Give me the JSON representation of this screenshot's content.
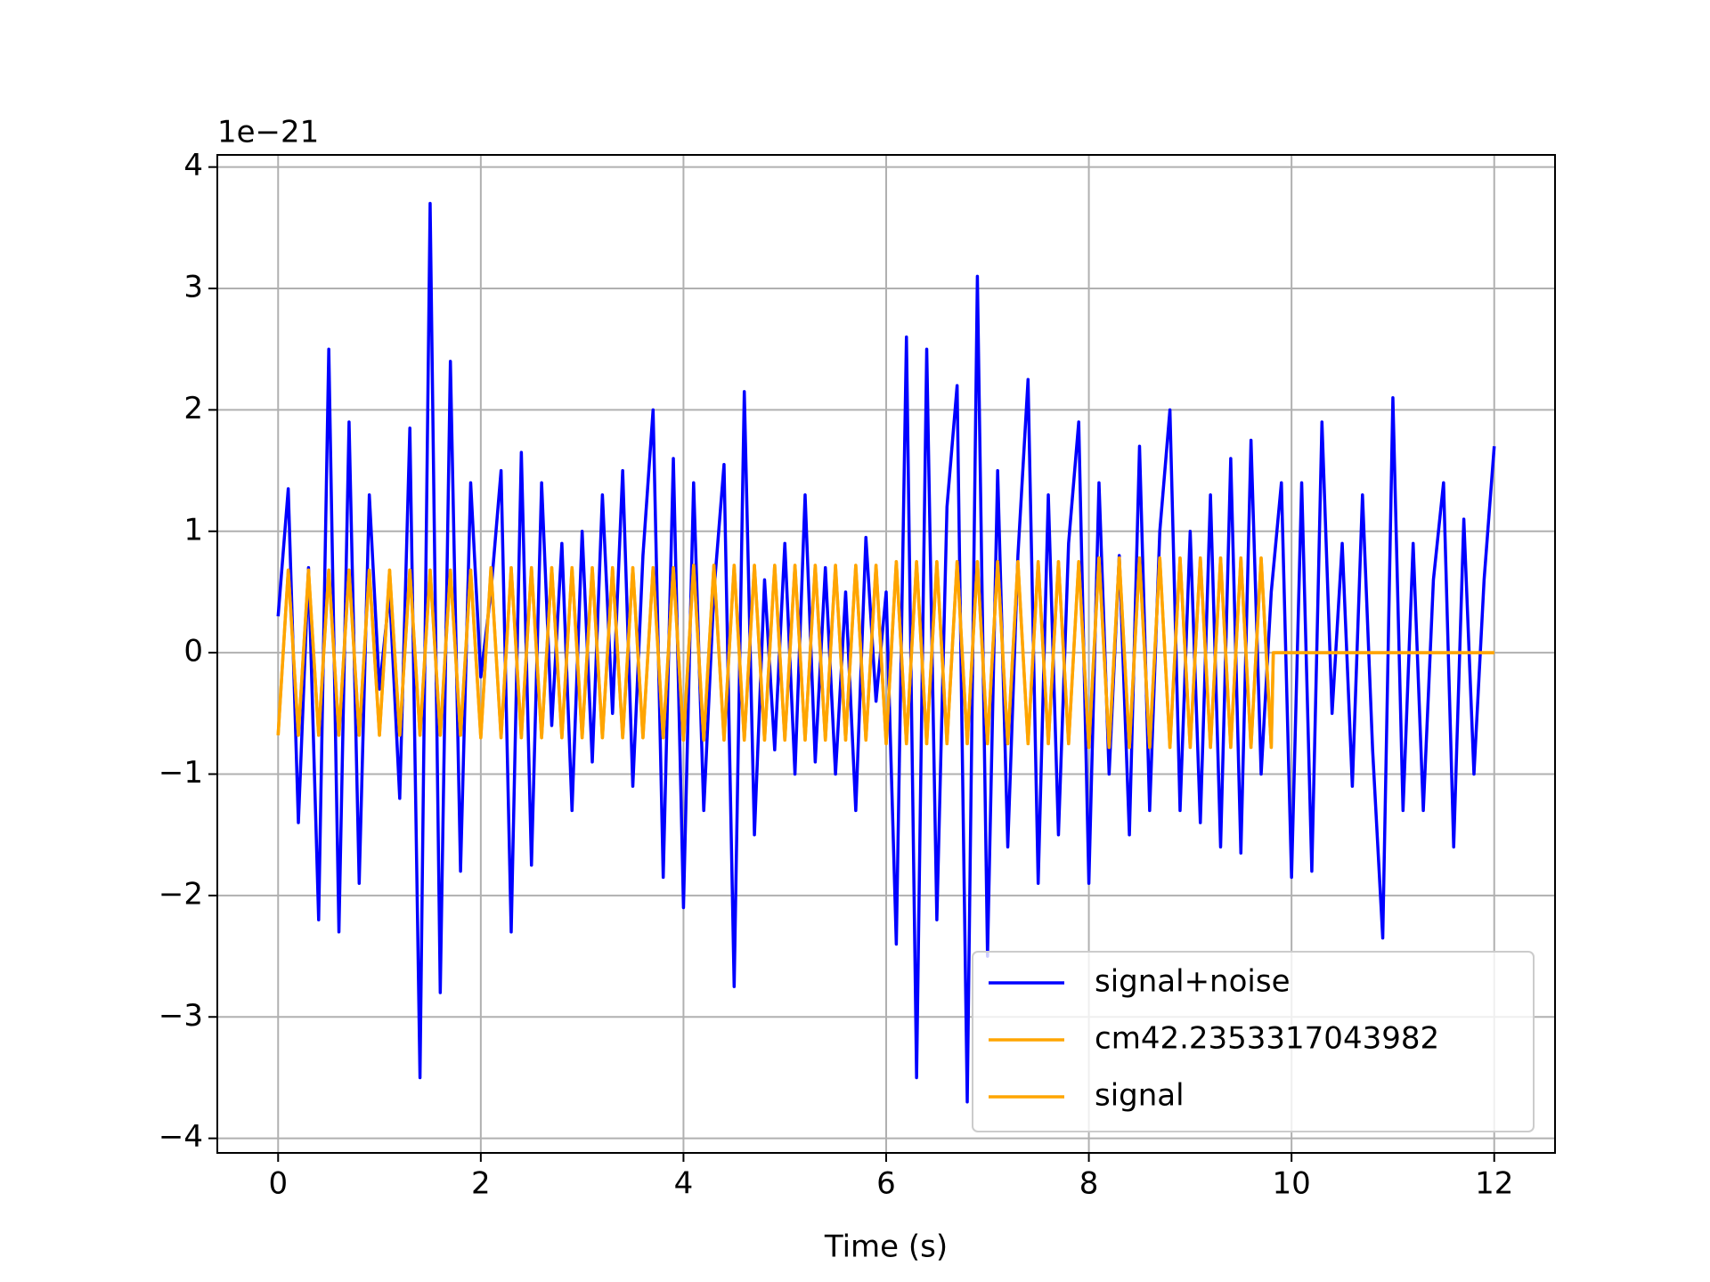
{
  "chart_data": {
    "type": "line",
    "x_label": "Time (s)",
    "y_offset_label": "1e−21",
    "xlim": [
      -0.6,
      12.6
    ],
    "ylim": [
      -4.12,
      4.1
    ],
    "xticks": [
      0,
      2,
      4,
      6,
      8,
      10,
      12
    ],
    "yticks": [
      {
        "value": -4,
        "label": "−4"
      },
      {
        "value": -3,
        "label": "−3"
      },
      {
        "value": -2,
        "label": "−2"
      },
      {
        "value": -1,
        "label": "−1"
      },
      0,
      1,
      2,
      3,
      4
    ],
    "grid": true,
    "legend": "lower right",
    "series": [
      {
        "name": "signal+noise",
        "color": "#0000ff",
        "x": [
          0,
          0.1,
          0.2,
          0.3,
          0.4,
          0.5,
          0.6,
          0.7,
          0.8,
          0.9,
          1,
          1.1,
          1.2,
          1.3,
          1.4,
          1.5,
          1.6,
          1.7,
          1.8,
          1.9,
          2,
          2.1,
          2.2,
          2.3,
          2.4,
          2.5,
          2.6,
          2.7,
          2.8,
          2.9,
          3,
          3.1,
          3.2,
          3.3,
          3.4,
          3.5,
          3.6,
          3.7,
          3.8,
          3.9,
          4,
          4.1,
          4.2,
          4.3,
          4.4,
          4.5,
          4.6,
          4.7,
          4.8,
          4.9,
          5,
          5.1,
          5.2,
          5.3,
          5.4,
          5.5,
          5.6,
          5.7,
          5.8,
          5.9,
          6,
          6.1,
          6.2,
          6.3,
          6.4,
          6.5,
          6.6,
          6.7,
          6.8,
          6.9,
          7,
          7.1,
          7.2,
          7.3,
          7.4,
          7.5,
          7.6,
          7.7,
          7.8,
          7.9,
          8,
          8.1,
          8.2,
          8.3,
          8.4,
          8.5,
          8.6,
          8.7,
          8.8,
          8.9,
          9,
          9.1,
          9.2,
          9.3,
          9.4,
          9.5,
          9.6,
          9.7,
          9.8,
          9.9,
          10,
          10.1,
          10.2,
          10.3,
          10.4,
          10.5,
          10.6,
          10.7,
          10.8,
          10.9,
          11,
          11.1,
          11.2,
          11.3,
          11.4,
          11.5,
          11.6,
          11.7,
          11.8,
          11.9,
          12
        ],
        "values": [
          0.3,
          1.35,
          -1.4,
          0.7,
          -2.2,
          2.5,
          -2.3,
          1.9,
          -1.9,
          1.3,
          -0.3,
          0.5,
          -1.2,
          1.85,
          -3.5,
          3.7,
          -2.8,
          2.4,
          -1.8,
          1.4,
          -0.2,
          0.5,
          1.5,
          -2.3,
          1.65,
          -1.75,
          1.4,
          -0.6,
          0.9,
          -1.3,
          1.0,
          -0.9,
          1.3,
          -0.5,
          1.5,
          -1.1,
          0.8,
          2.0,
          -1.85,
          1.6,
          -2.1,
          1.4,
          -1.3,
          0.5,
          1.55,
          -2.75,
          2.15,
          -1.5,
          0.6,
          -0.8,
          0.9,
          -1.0,
          1.3,
          -0.9,
          0.7,
          -1.0,
          0.5,
          -1.3,
          0.95,
          -0.4,
          0.5,
          -2.4,
          2.6,
          -3.5,
          2.5,
          -2.2,
          1.2,
          2.2,
          -3.7,
          3.1,
          -2.5,
          1.5,
          -1.6,
          0.8,
          2.25,
          -1.9,
          1.3,
          -1.5,
          0.9,
          1.9,
          -1.9,
          1.4,
          -1.0,
          0.8,
          -1.5,
          1.7,
          -1.3,
          1.0,
          2.0,
          -1.3,
          1.0,
          -1.4,
          1.3,
          -1.6,
          1.6,
          -1.65,
          1.75,
          -1.0,
          0.5,
          1.4,
          -1.85,
          1.4,
          -1.8,
          1.9,
          -0.5,
          0.9,
          -1.1,
          1.3,
          -0.8,
          -2.35,
          2.1,
          -1.3,
          0.9,
          -1.3,
          0.6,
          1.4,
          -1.6,
          1.1,
          -1.0,
          0.6,
          1.7
        ]
      },
      {
        "name": "cm42.2353317043982",
        "color": "#ffa500",
        "x": [
          0,
          0.1,
          0.2,
          0.3,
          0.4,
          0.5,
          0.6,
          0.7,
          0.8,
          0.9,
          1,
          1.1,
          1.2,
          1.3,
          1.4,
          1.5,
          1.6,
          1.7,
          1.8,
          1.9,
          2,
          2.1,
          2.2,
          2.3,
          2.4,
          2.5,
          2.6,
          2.7,
          2.8,
          2.9,
          3,
          3.1,
          3.2,
          3.3,
          3.4,
          3.5,
          3.6,
          3.7,
          3.8,
          3.9,
          4,
          4.1,
          4.2,
          4.3,
          4.4,
          4.5,
          4.6,
          4.7,
          4.8,
          4.9,
          5,
          5.1,
          5.2,
          5.3,
          5.4,
          5.5,
          5.6,
          5.7,
          5.8,
          5.9,
          6,
          6.1,
          6.2,
          6.3,
          6.4,
          6.5,
          6.6,
          6.7,
          6.8,
          6.9,
          7,
          7.1,
          7.2,
          7.3,
          7.4,
          7.5,
          7.6,
          7.7,
          7.8,
          7.9,
          8,
          8.1,
          8.2,
          8.3,
          8.4,
          8.5,
          8.6,
          8.7,
          8.8,
          8.9,
          9,
          9.1,
          9.2,
          9.3,
          9.4,
          9.5,
          9.6,
          9.7,
          9.8,
          9.82,
          12
        ],
        "values": [
          -0.68,
          0.68,
          -0.68,
          0.68,
          -0.68,
          0.68,
          -0.68,
          0.68,
          -0.68,
          0.68,
          -0.68,
          0.68,
          -0.68,
          0.68,
          -0.68,
          0.68,
          -0.68,
          0.68,
          -0.68,
          0.68,
          -0.7,
          0.7,
          -0.7,
          0.7,
          -0.7,
          0.7,
          -0.7,
          0.7,
          -0.7,
          0.7,
          -0.7,
          0.7,
          -0.7,
          0.7,
          -0.7,
          0.7,
          -0.7,
          0.7,
          -0.7,
          0.7,
          -0.72,
          0.72,
          -0.72,
          0.72,
          -0.72,
          0.72,
          -0.72,
          0.72,
          -0.72,
          0.72,
          -0.72,
          0.72,
          -0.72,
          0.72,
          -0.72,
          0.72,
          -0.72,
          0.72,
          -0.72,
          0.72,
          -0.75,
          0.75,
          -0.75,
          0.75,
          -0.75,
          0.75,
          -0.75,
          0.75,
          -0.75,
          0.75,
          -0.75,
          0.75,
          -0.75,
          0.75,
          -0.75,
          0.75,
          -0.75,
          0.75,
          -0.75,
          0.75,
          -0.78,
          0.78,
          -0.78,
          0.78,
          -0.78,
          0.78,
          -0.78,
          0.78,
          -0.78,
          0.78,
          -0.78,
          0.78,
          -0.78,
          0.78,
          -0.78,
          0.78,
          -0.78,
          0.78,
          -0.78,
          0,
          0
        ]
      },
      {
        "name": "signal",
        "color": "#ffa500",
        "x": [
          0,
          0.1,
          0.2,
          0.3,
          0.4,
          0.5,
          0.6,
          0.7,
          0.8,
          0.9,
          1,
          1.1,
          1.2,
          1.3,
          1.4,
          1.5,
          1.6,
          1.7,
          1.8,
          1.9,
          2,
          2.1,
          2.2,
          2.3,
          2.4,
          2.5,
          2.6,
          2.7,
          2.8,
          2.9,
          3,
          3.1,
          3.2,
          3.3,
          3.4,
          3.5,
          3.6,
          3.7,
          3.8,
          3.9,
          4,
          4.1,
          4.2,
          4.3,
          4.4,
          4.5,
          4.6,
          4.7,
          4.8,
          4.9,
          5,
          5.1,
          5.2,
          5.3,
          5.4,
          5.5,
          5.6,
          5.7,
          5.8,
          5.9,
          6,
          6.1,
          6.2,
          6.3,
          6.4,
          6.5,
          6.6,
          6.7,
          6.8,
          6.9,
          7,
          7.1,
          7.2,
          7.3,
          7.4,
          7.5,
          7.6,
          7.7,
          7.8,
          7.9,
          8,
          8.1,
          8.2,
          8.3,
          8.4,
          8.5,
          8.6,
          8.7,
          8.8,
          8.9,
          9,
          9.1,
          9.2,
          9.3,
          9.4,
          9.5,
          9.6,
          9.7,
          9.8,
          9.82,
          12
        ],
        "values": [
          -0.68,
          0.68,
          -0.68,
          0.68,
          -0.68,
          0.68,
          -0.68,
          0.68,
          -0.68,
          0.68,
          -0.68,
          0.68,
          -0.68,
          0.68,
          -0.68,
          0.68,
          -0.68,
          0.68,
          -0.68,
          0.68,
          -0.7,
          0.7,
          -0.7,
          0.7,
          -0.7,
          0.7,
          -0.7,
          0.7,
          -0.7,
          0.7,
          -0.7,
          0.7,
          -0.7,
          0.7,
          -0.7,
          0.7,
          -0.7,
          0.7,
          -0.7,
          0.7,
          -0.72,
          0.72,
          -0.72,
          0.72,
          -0.72,
          0.72,
          -0.72,
          0.72,
          -0.72,
          0.72,
          -0.72,
          0.72,
          -0.72,
          0.72,
          -0.72,
          0.72,
          -0.72,
          0.72,
          -0.72,
          0.72,
          -0.75,
          0.75,
          -0.75,
          0.75,
          -0.75,
          0.75,
          -0.75,
          0.75,
          -0.75,
          0.75,
          -0.75,
          0.75,
          -0.75,
          0.75,
          -0.75,
          0.75,
          -0.75,
          0.75,
          -0.75,
          0.75,
          -0.78,
          0.78,
          -0.78,
          0.78,
          -0.78,
          0.78,
          -0.78,
          0.78,
          -0.78,
          0.78,
          -0.78,
          0.78,
          -0.78,
          0.78,
          -0.78,
          0.78,
          -0.78,
          0.78,
          -0.78,
          0,
          0
        ]
      }
    ]
  }
}
